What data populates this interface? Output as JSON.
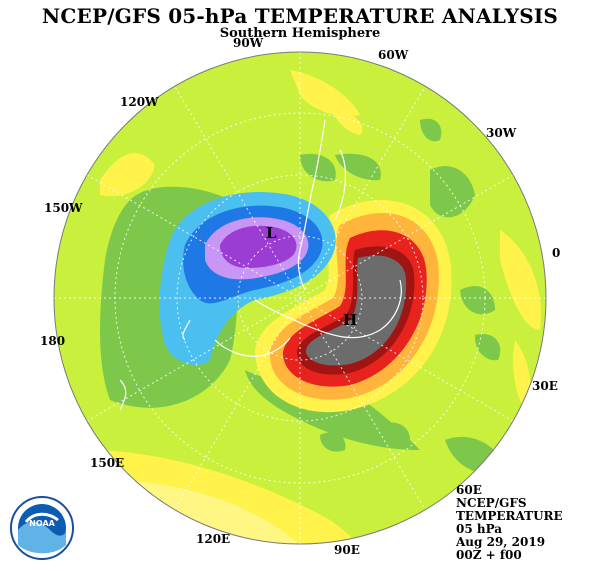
{
  "header": {
    "title": "NCEP/GFS 05-hPa TEMPERATURE ANALYSIS",
    "subtitle": "Southern Hemisphere"
  },
  "longitude_labels": {
    "w90": "90W",
    "w60": "60W",
    "w30": "30W",
    "zero": "0",
    "e30": "30E",
    "e60": "60E",
    "e90": "90E",
    "e120": "120E",
    "e150": "150E",
    "d180": "180",
    "w150": "150W",
    "w120": "120W"
  },
  "markers": {
    "low": "L",
    "high": "H"
  },
  "info_block": {
    "model": "NCEP/GFS",
    "field": "TEMPERATURE",
    "level": "05 hPa",
    "date": "Aug 29, 2019",
    "time": "00Z + f00"
  },
  "logo": {
    "text": "NOAA",
    "colors": {
      "blue": "#0a5db0",
      "light": "#5fb3e6"
    }
  },
  "palette": {
    "background": "#c8f03c",
    "green": "#7dc84a",
    "yellow": "#fff24a",
    "orange": "#ffb43c",
    "red": "#e8231e",
    "gray": "#6c6c6c",
    "cyan": "#4bbff0",
    "blue": "#1e78e6",
    "lavender": "#c896f5",
    "purple": "#9b3cd2"
  }
}
